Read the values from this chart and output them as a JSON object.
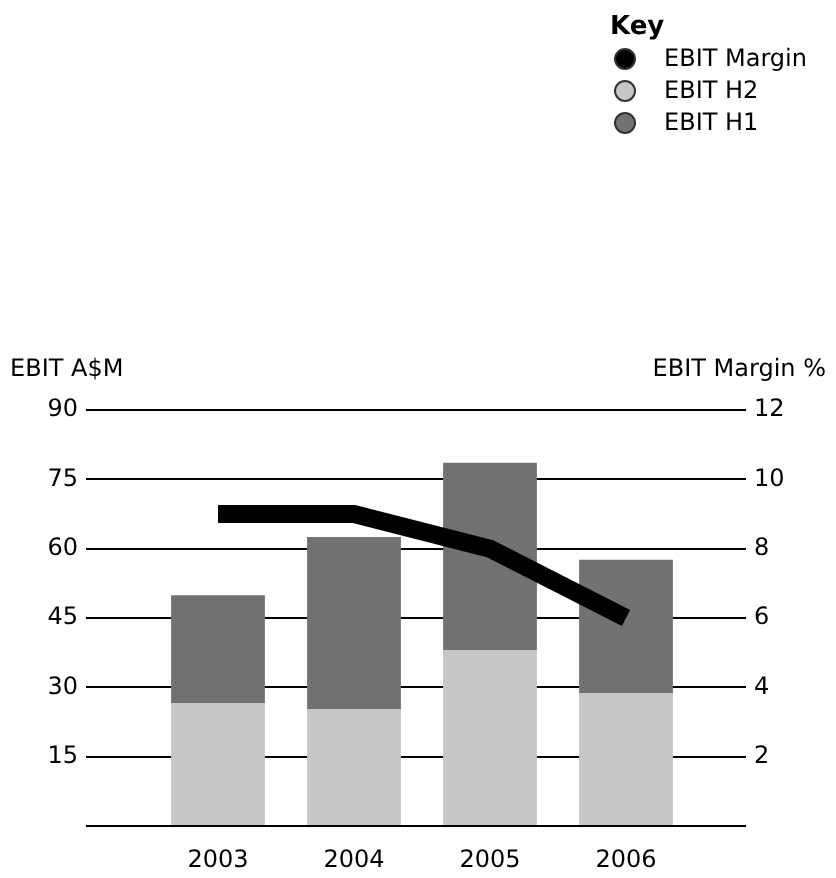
{
  "chart_data": {
    "type": "bar",
    "categories": [
      "2003",
      "2004",
      "2005",
      "2006"
    ],
    "ylabel": "EBIT A$M",
    "y2label": "EBIT Margin %",
    "legend_title": "Key",
    "stacked": true,
    "ylim": [
      0,
      90
    ],
    "yticks": [
      {
        "value": 0,
        "label": null
      },
      15,
      30,
      45,
      60,
      75,
      90
    ],
    "y2lim": [
      0,
      12
    ],
    "y2ticks": [
      {
        "value": 0,
        "label": null
      },
      2,
      4,
      6,
      8,
      10,
      12
    ],
    "grid": "y",
    "legend": "top right",
    "marker": "none",
    "line_style": "solid",
    "series": [
      {
        "name": "EBIT Margin",
        "type": "line",
        "axis": "y2",
        "color": "#000000",
        "values": [
          9,
          9,
          8,
          6
        ]
      },
      {
        "name": "EBIT H2",
        "color": "#c6c7c9",
        "values": [
          26.6,
          25.3,
          38.1,
          28.8
        ]
      },
      {
        "name": "EBIT H1",
        "color": "#717274",
        "values": [
          23.3,
          37.2,
          40.5,
          28.8
        ]
      }
    ]
  }
}
